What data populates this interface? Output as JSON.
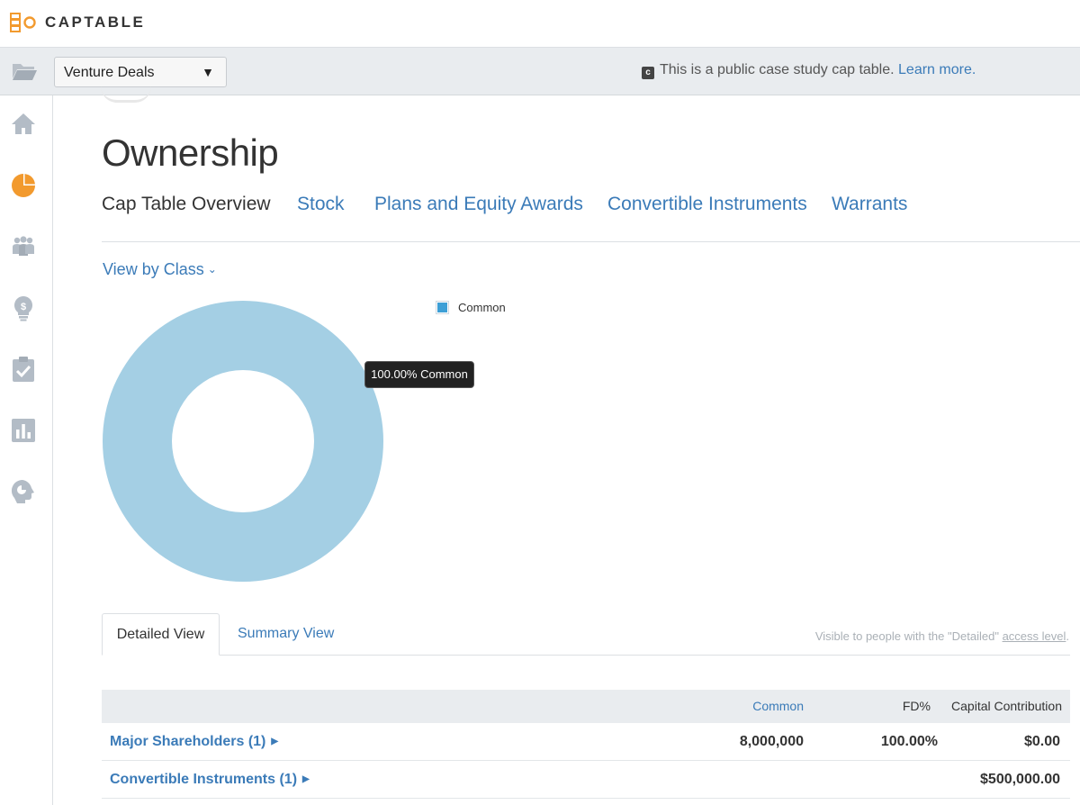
{
  "app": {
    "logo_text": "CAPTABLE",
    "brand_color": "#f29a2e"
  },
  "subbar": {
    "company": "Venture Deals",
    "caret": "▼",
    "notice_text": "This is a public case study cap table.",
    "notice_link": "Learn more."
  },
  "sidebar": {
    "items": [
      {
        "icon": "home-icon",
        "active": false
      },
      {
        "icon": "pie-chart-icon",
        "active": true
      },
      {
        "icon": "people-icon",
        "active": false
      },
      {
        "icon": "lightbulb-icon",
        "active": false
      },
      {
        "icon": "clipboard-check-icon",
        "active": false
      },
      {
        "icon": "bar-chart-icon",
        "active": false
      },
      {
        "icon": "head-icon",
        "active": false
      }
    ]
  },
  "main": {
    "title": "Ownership",
    "tabs": [
      {
        "label": "Cap Table Overview",
        "active": true
      },
      {
        "label": "Stock",
        "active": false
      },
      {
        "label": "Plans and Equity Awards",
        "active": false
      },
      {
        "label": "Convertible Instruments",
        "active": false
      },
      {
        "label": "Warrants",
        "active": false
      }
    ],
    "view_by": "View by Class",
    "subtabs": {
      "detailed": "Detailed View",
      "summary": "Summary View"
    },
    "visible_note_prefix": "Visible to people with the \"Detailed\"",
    "visible_note_link": "access level",
    "visible_note_suffix": "."
  },
  "chart_data": {
    "type": "pie",
    "donut": true,
    "categories": [
      "Common"
    ],
    "values": [
      100.0
    ],
    "colors": [
      "#a4cfe4"
    ],
    "legend": [
      {
        "label": "Common",
        "color": "#3d9fd6"
      }
    ],
    "legend_position": "top-right",
    "tooltip": "100.00% Common"
  },
  "table": {
    "headers": {
      "common": "Common",
      "fd": "FD%",
      "capital": "Capital Contribution"
    },
    "rows": [
      {
        "name": "Major Shareholders (1)",
        "common": "8,000,000",
        "fd": "100.00%",
        "capital": "$0.00"
      },
      {
        "name": "Convertible Instruments (1)",
        "common": "",
        "fd": "",
        "capital": "$500,000.00"
      }
    ]
  }
}
